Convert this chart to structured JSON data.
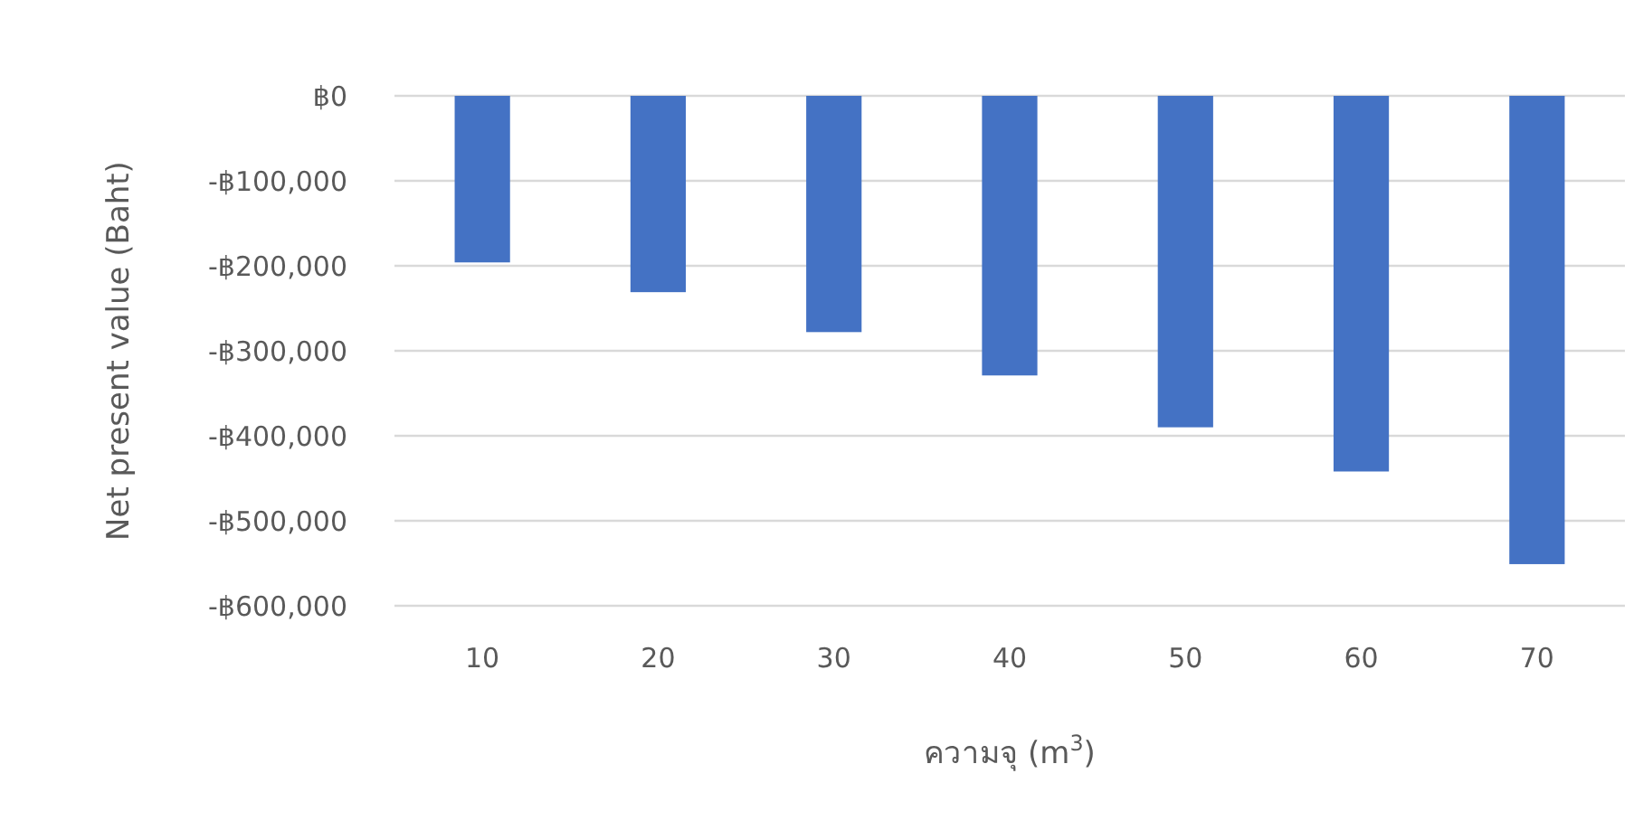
{
  "chart_data": {
    "type": "bar",
    "xlabel": "ความจุ (m$^{3}$)",
    "ylabel": "Net present value (Baht)",
    "categories": [
      "10",
      "20",
      "30",
      "40",
      "50",
      "60",
      "70"
    ],
    "values": [
      -196000,
      -231000,
      -278000,
      -329000,
      -390000,
      -442000,
      -551000
    ],
    "color": "#4472c4",
    "ylim": [
      -600000,
      0
    ],
    "yticks": [
      {
        "value": 0,
        "label": "฿0"
      },
      {
        "value": -100000,
        "label": "-฿100,000"
      },
      {
        "value": -200000,
        "label": "-฿200,000"
      },
      {
        "value": -300000,
        "label": "-฿300,000"
      },
      {
        "value": -400000,
        "label": "-฿400,000"
      },
      {
        "value": -500000,
        "label": "-฿500,000"
      },
      {
        "value": -600000,
        "label": "-฿600,000"
      }
    ],
    "grid": "y"
  }
}
